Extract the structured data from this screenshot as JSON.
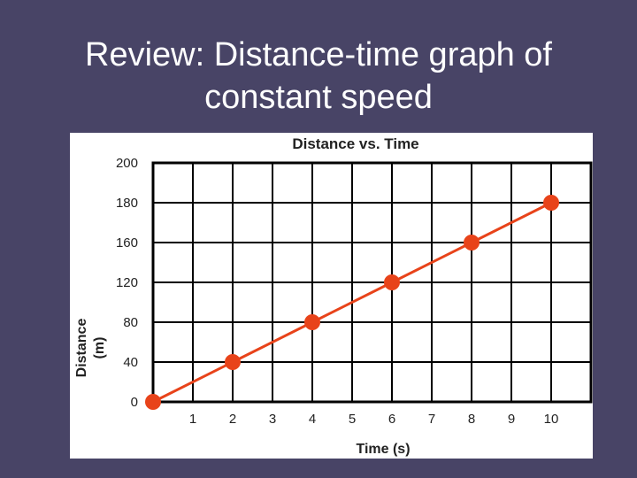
{
  "slide": {
    "title_line1": "Review: Distance-time graph of",
    "title_line2": "constant speed"
  },
  "chart_data": {
    "type": "line",
    "title": "Distance vs. Time",
    "xlabel": "Time (s)",
    "ylabel_line1": "Distance",
    "ylabel_line2": "(m)",
    "x_ticks": [
      "1",
      "2",
      "3",
      "4",
      "5",
      "6",
      "7",
      "8",
      "9",
      "10"
    ],
    "y_ticks": [
      "0",
      "40",
      "80",
      "120",
      "160",
      "180",
      "200"
    ],
    "xlim": [
      0,
      11
    ],
    "grid": true,
    "legend": "none",
    "series": [
      {
        "x": [
          0,
          2,
          4,
          6,
          8,
          10
        ],
        "y": [
          0,
          40,
          80,
          120,
          160,
          180
        ],
        "color": "#e8431a"
      }
    ],
    "colors": {
      "grid": "#000000",
      "line": "#e8431a",
      "background": "#ffffff",
      "slide_background": "#484466"
    }
  }
}
